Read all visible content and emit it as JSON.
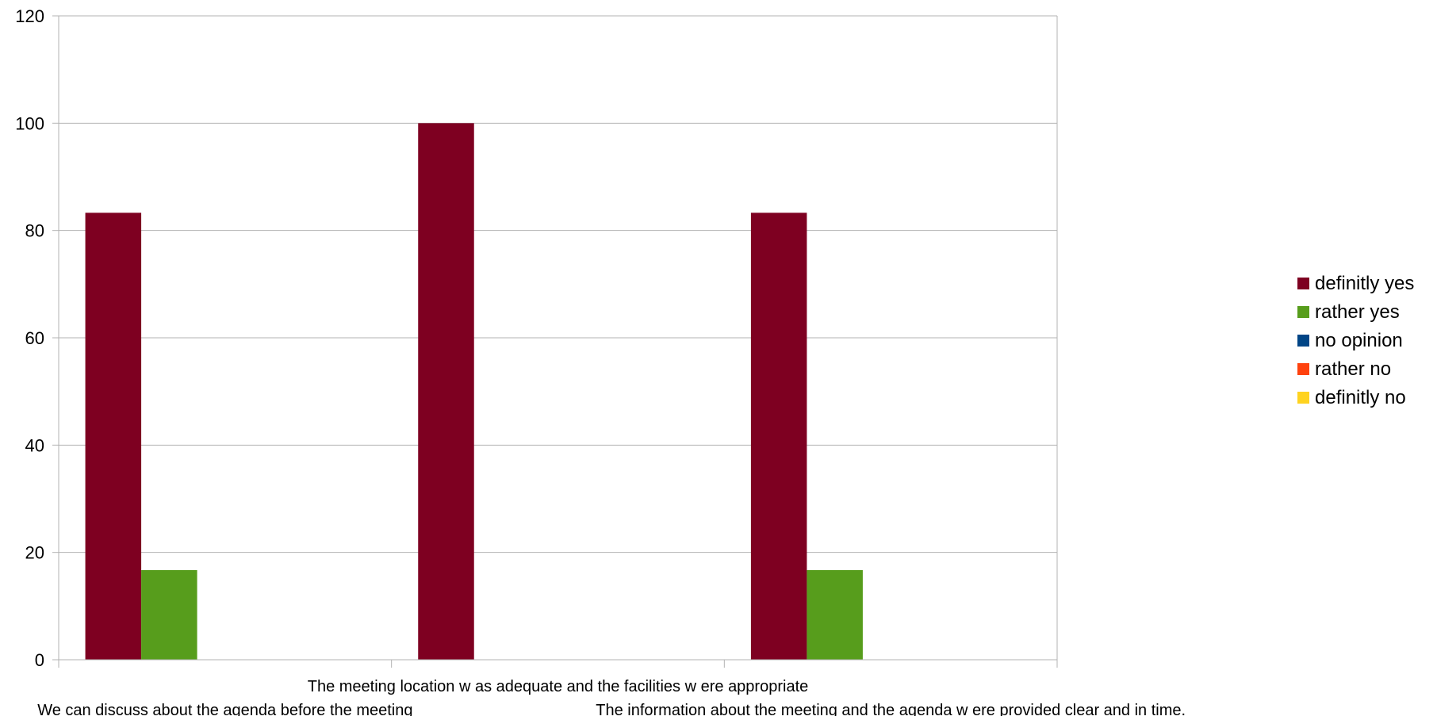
{
  "chart_data": {
    "type": "bar",
    "categories": [
      "We can discuss about the agenda before the meeting",
      "The meeting location w as adequate and the facilities w ere appropriate",
      "The information about the meeting and the agenda w ere provided clear and in time."
    ],
    "series": [
      {
        "name": "definitly yes",
        "color": "#7e0021",
        "values": [
          83.3,
          100,
          83.3
        ]
      },
      {
        "name": "rather yes",
        "color": "#579d1c",
        "values": [
          16.7,
          0,
          16.7
        ]
      },
      {
        "name": "no opinion",
        "color": "#004586",
        "values": [
          0,
          0,
          0
        ]
      },
      {
        "name": "rather no",
        "color": "#ff420e",
        "values": [
          0,
          0,
          0
        ]
      },
      {
        "name": "definitly no",
        "color": "#ffd320",
        "values": [
          0,
          0,
          0
        ]
      }
    ],
    "yticks": [
      0,
      20,
      40,
      60,
      80,
      100,
      120
    ],
    "ylim": [
      0,
      120
    ],
    "title": "",
    "xlabel": "",
    "ylabel": "",
    "grid": true,
    "legend_position": "right"
  }
}
